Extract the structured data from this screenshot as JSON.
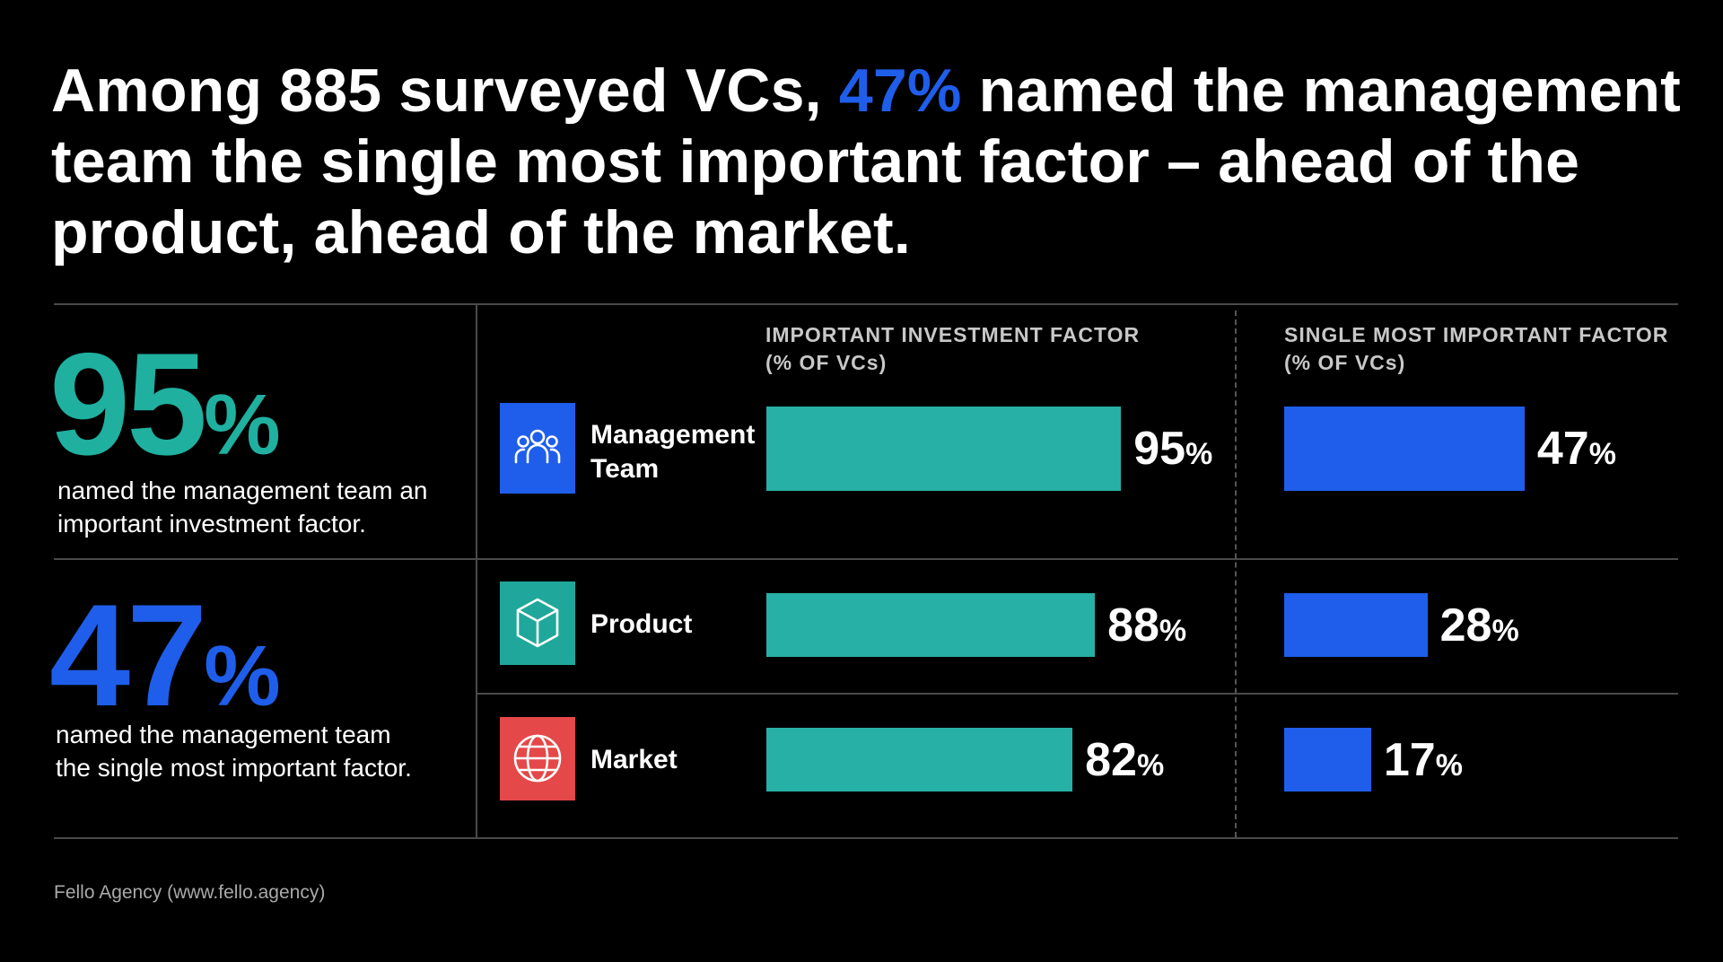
{
  "headline": {
    "before": "Among 885 surveyed VCs, ",
    "accent": "47%",
    "after": " named the management team the single most important factor – ahead of the product, ahead of the market."
  },
  "stats": [
    {
      "value": "95",
      "unit": "%",
      "color": "#1fb0a0",
      "description": "named the management team an important investment factor."
    },
    {
      "value": "47",
      "unit": "%",
      "color": "#1f5eea",
      "description": "named the management team the single most important factor."
    }
  ],
  "source": "Fello Agency (www.fello.agency)",
  "colors": {
    "teal": "#27b0a6",
    "blue": "#1f5eea",
    "background": "#000000"
  },
  "chart_data": {
    "type": "bar",
    "orientation": "horizontal",
    "categories": [
      "Management Team",
      "Product",
      "Market"
    ],
    "category_icons": [
      "people-icon",
      "cube-icon",
      "globe-icon"
    ],
    "icon_colors": [
      "#1f5eea",
      "#20a79b",
      "#e44848"
    ],
    "unit": "%",
    "xlim": [
      0,
      100
    ],
    "series": [
      {
        "name": "IMPORTANT INVESTMENT FACTOR",
        "subtitle": "(% OF VCs)",
        "values": [
          95,
          88,
          82
        ],
        "color": "#27b0a6"
      },
      {
        "name": "SINGLE MOST IMPORTANT FACTOR",
        "subtitle": "(% OF VCs)",
        "values": [
          47,
          28,
          17
        ],
        "color": "#1f5eea"
      }
    ]
  }
}
